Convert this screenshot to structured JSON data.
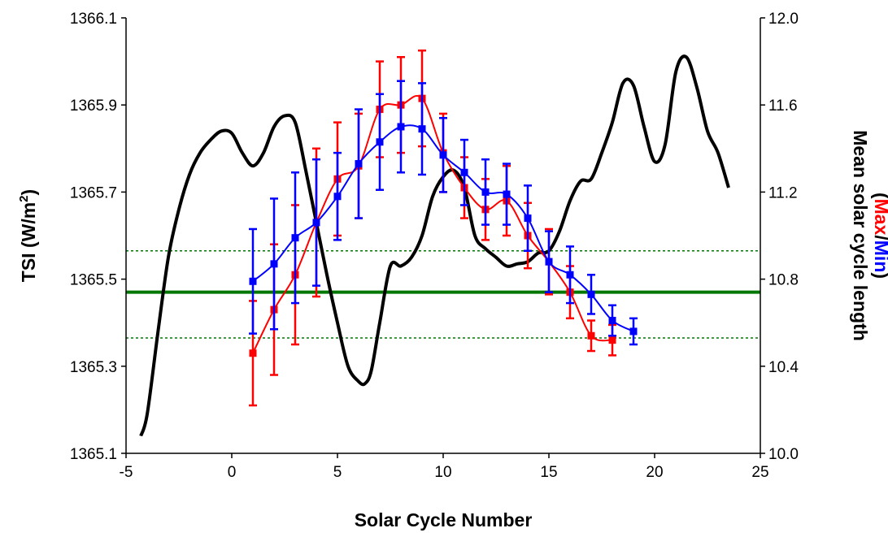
{
  "chart_data": {
    "type": "line",
    "title": "",
    "xlabel": "Solar Cycle Number",
    "ylabel": "TSI (W/m",
    "ylabel_sup": "2",
    "ylabel_suffix": ")",
    "y2label": "Mean solar cycle length",
    "y2label_sub": {
      "open": "(",
      "max": "Max",
      "slash": "/",
      "min": "Min",
      "close": ")"
    },
    "xlim": [
      -5,
      25
    ],
    "ylim": [
      1365.1,
      1366.1
    ],
    "y2lim": [
      10.0,
      12.0
    ],
    "x_ticks": [
      "-5",
      "0",
      "5",
      "10",
      "15",
      "20",
      "25"
    ],
    "y_ticks": [
      "1365.1",
      "1365.3",
      "1365.5",
      "1365.7",
      "1365.9",
      "1366.1"
    ],
    "y2_ticks": [
      "10.0",
      "10.4",
      "10.8",
      "11.2",
      "11.6",
      "12.0"
    ],
    "grid": false,
    "colors": {
      "max": "#ff0000",
      "min": "#0000ff",
      "length": "#000000",
      "reference": "#007700"
    },
    "reference_lines": {
      "mean": 1365.47,
      "upper": 1365.565,
      "lower": 1365.365
    },
    "series": [
      {
        "axis": "right",
        "x": [
          -4.3,
          -4.0,
          -3.5,
          -3.0,
          -2.5,
          -2.0,
          -1.5,
          -1.0,
          -0.5,
          0.0,
          0.5,
          1.0,
          1.5,
          2.0,
          2.5,
          3.0,
          3.5,
          4.0,
          4.5,
          5.0,
          5.5,
          6.0,
          6.3,
          6.6,
          7.0,
          7.5,
          8.0,
          8.5,
          9.0,
          9.5,
          10.0,
          10.5,
          11.0,
          11.5,
          12.0,
          12.5,
          13.0,
          13.5,
          14.0,
          14.5,
          15.0,
          15.5,
          16.0,
          16.5,
          17.0,
          17.5,
          18.0,
          18.5,
          19.0,
          19.5,
          20.0,
          20.5,
          21.0,
          21.5,
          22.0,
          22.5,
          23.0,
          23.5
        ],
        "values": [
          10.08,
          10.18,
          10.55,
          10.9,
          11.12,
          11.28,
          11.38,
          11.44,
          11.48,
          11.47,
          11.38,
          11.32,
          11.38,
          11.5,
          11.55,
          11.52,
          11.3,
          11.06,
          10.82,
          10.6,
          10.4,
          10.33,
          10.32,
          10.38,
          10.6,
          10.86,
          10.86,
          10.9,
          11.0,
          11.18,
          11.27,
          11.3,
          11.22,
          11.0,
          10.94,
          10.9,
          10.86,
          10.87,
          10.88,
          10.92,
          10.93,
          11.02,
          11.16,
          11.25,
          11.26,
          11.38,
          11.52,
          11.7,
          11.69,
          11.5,
          11.34,
          11.42,
          11.75,
          11.82,
          11.68,
          11.48,
          11.38,
          11.22
        ]
      },
      {
        "name": "Max",
        "axis": "left",
        "x": [
          1,
          2,
          3,
          4,
          5,
          6,
          7,
          8,
          9,
          10,
          11,
          12,
          13,
          14,
          15,
          16,
          17,
          18
        ],
        "values": [
          1365.33,
          1365.43,
          1365.51,
          1365.63,
          1365.73,
          1365.76,
          1365.89,
          1365.9,
          1365.915,
          1365.79,
          1365.71,
          1365.66,
          1365.68,
          1365.6,
          1365.54,
          1365.47,
          1365.37,
          1365.36
        ],
        "errors": [
          0.12,
          0.15,
          0.16,
          0.17,
          0.13,
          0.12,
          0.11,
          0.11,
          0.11,
          0.09,
          0.07,
          0.07,
          0.08,
          0.075,
          0.075,
          0.06,
          0.035,
          0.035
        ]
      },
      {
        "name": "Min",
        "axis": "left",
        "x": [
          1,
          2,
          3,
          4,
          5,
          6,
          7,
          8,
          9,
          10,
          11,
          12,
          13,
          14,
          15,
          16,
          17,
          18,
          19
        ],
        "values": [
          1365.495,
          1365.535,
          1365.595,
          1365.63,
          1365.69,
          1365.765,
          1365.815,
          1365.85,
          1365.845,
          1365.785,
          1365.745,
          1365.7,
          1365.695,
          1365.64,
          1365.54,
          1365.51,
          1365.465,
          1365.405,
          1365.38
        ],
        "errors": [
          0.12,
          0.15,
          0.15,
          0.145,
          0.1,
          0.125,
          0.11,
          0.105,
          0.105,
          0.085,
          0.075,
          0.075,
          0.07,
          0.075,
          0.07,
          0.065,
          0.045,
          0.035,
          0.03
        ]
      }
    ]
  }
}
